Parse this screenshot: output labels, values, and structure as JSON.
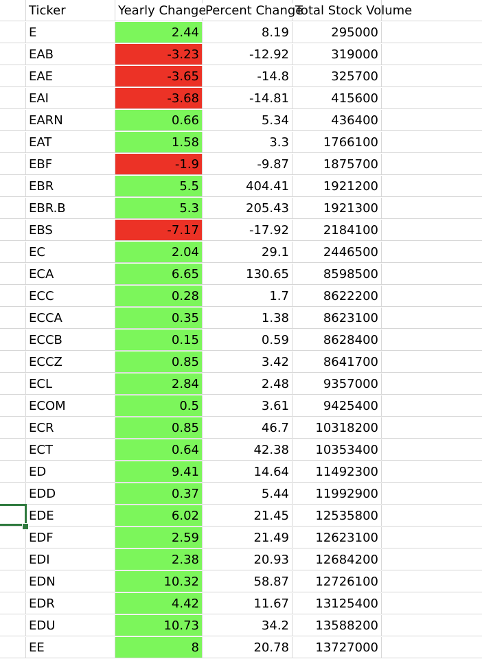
{
  "headers": [
    "Ticker",
    "Yearly Change",
    "Percent Change",
    "Total Stock Volume"
  ],
  "rows": [
    {
      "ticker": "E",
      "yearly_change": "2.44",
      "percent_change": "8.19",
      "volume": "295000",
      "status": "positive"
    },
    {
      "ticker": "EAB",
      "yearly_change": "-3.23",
      "percent_change": "-12.92",
      "volume": "319000",
      "status": "negative"
    },
    {
      "ticker": "EAE",
      "yearly_change": "-3.65",
      "percent_change": "-14.8",
      "volume": "325700",
      "status": "negative"
    },
    {
      "ticker": "EAI",
      "yearly_change": "-3.68",
      "percent_change": "-14.81",
      "volume": "415600",
      "status": "negative"
    },
    {
      "ticker": "EARN",
      "yearly_change": "0.66",
      "percent_change": "5.34",
      "volume": "436400",
      "status": "positive"
    },
    {
      "ticker": "EAT",
      "yearly_change": "1.58",
      "percent_change": "3.3",
      "volume": "1766100",
      "status": "positive"
    },
    {
      "ticker": "EBF",
      "yearly_change": "-1.9",
      "percent_change": "-9.87",
      "volume": "1875700",
      "status": "negative"
    },
    {
      "ticker": "EBR",
      "yearly_change": "5.5",
      "percent_change": "404.41",
      "volume": "1921200",
      "status": "positive"
    },
    {
      "ticker": "EBR.B",
      "yearly_change": "5.3",
      "percent_change": "205.43",
      "volume": "1921300",
      "status": "positive"
    },
    {
      "ticker": "EBS",
      "yearly_change": "-7.17",
      "percent_change": "-17.92",
      "volume": "2184100",
      "status": "negative"
    },
    {
      "ticker": "EC",
      "yearly_change": "2.04",
      "percent_change": "29.1",
      "volume": "2446500",
      "status": "positive"
    },
    {
      "ticker": "ECA",
      "yearly_change": "6.65",
      "percent_change": "130.65",
      "volume": "8598500",
      "status": "positive"
    },
    {
      "ticker": "ECC",
      "yearly_change": "0.28",
      "percent_change": "1.7",
      "volume": "8622200",
      "status": "positive"
    },
    {
      "ticker": "ECCA",
      "yearly_change": "0.35",
      "percent_change": "1.38",
      "volume": "8623100",
      "status": "positive"
    },
    {
      "ticker": "ECCB",
      "yearly_change": "0.15",
      "percent_change": "0.59",
      "volume": "8628400",
      "status": "positive"
    },
    {
      "ticker": "ECCZ",
      "yearly_change": "0.85",
      "percent_change": "3.42",
      "volume": "8641700",
      "status": "positive"
    },
    {
      "ticker": "ECL",
      "yearly_change": "2.84",
      "percent_change": "2.48",
      "volume": "9357000",
      "status": "positive"
    },
    {
      "ticker": "ECOM",
      "yearly_change": "0.5",
      "percent_change": "3.61",
      "volume": "9425400",
      "status": "positive"
    },
    {
      "ticker": "ECR",
      "yearly_change": "0.85",
      "percent_change": "46.7",
      "volume": "10318200",
      "status": "positive"
    },
    {
      "ticker": "ECT",
      "yearly_change": "0.64",
      "percent_change": "42.38",
      "volume": "10353400",
      "status": "positive"
    },
    {
      "ticker": "ED",
      "yearly_change": "9.41",
      "percent_change": "14.64",
      "volume": "11492300",
      "status": "positive"
    },
    {
      "ticker": "EDD",
      "yearly_change": "0.37",
      "percent_change": "5.44",
      "volume": "11992900",
      "status": "positive"
    },
    {
      "ticker": "EDE",
      "yearly_change": "6.02",
      "percent_change": "21.45",
      "volume": "12535800",
      "status": "positive"
    },
    {
      "ticker": "EDF",
      "yearly_change": "2.59",
      "percent_change": "21.49",
      "volume": "12623100",
      "status": "positive"
    },
    {
      "ticker": "EDI",
      "yearly_change": "2.38",
      "percent_change": "20.93",
      "volume": "12684200",
      "status": "positive"
    },
    {
      "ticker": "EDN",
      "yearly_change": "10.32",
      "percent_change": "58.87",
      "volume": "12726100",
      "status": "positive"
    },
    {
      "ticker": "EDR",
      "yearly_change": "4.42",
      "percent_change": "11.67",
      "volume": "13125400",
      "status": "positive"
    },
    {
      "ticker": "EDU",
      "yearly_change": "10.73",
      "percent_change": "34.2",
      "volume": "13588200",
      "status": "positive"
    },
    {
      "ticker": "EE",
      "yearly_change": "8",
      "percent_change": "20.78",
      "volume": "13727000",
      "status": "positive"
    }
  ],
  "colors": {
    "positive": "#7cf65b",
    "negative": "#ec3226",
    "selection": "#2f7a3e",
    "gridline": "#d6d6d6"
  }
}
